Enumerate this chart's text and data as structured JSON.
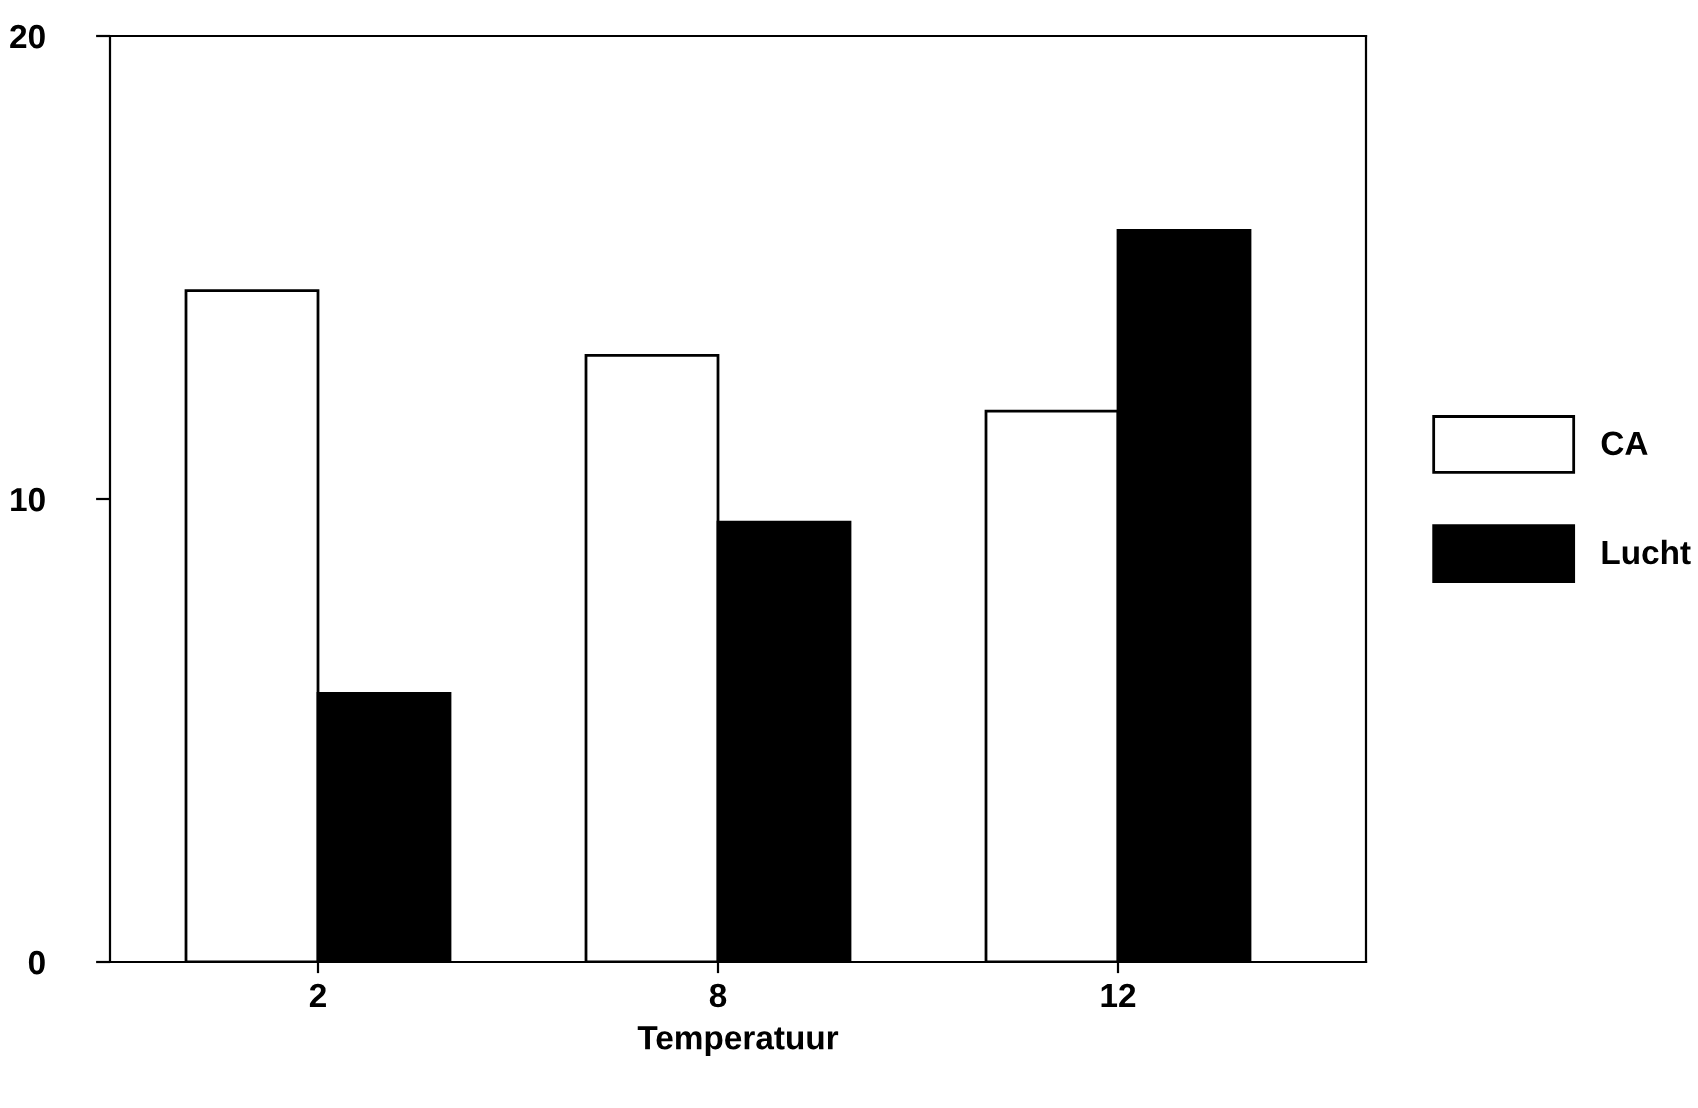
{
  "chart_data": {
    "type": "bar",
    "xlabel": "Temperatuur",
    "categories": [
      "2",
      "8",
      "12"
    ],
    "series": [
      {
        "name": "CA",
        "color": "#ffffff",
        "values": [
          14.5,
          13.1,
          11.9
        ]
      },
      {
        "name": "Lucht",
        "color": "#000000",
        "values": [
          5.8,
          9.5,
          15.8
        ]
      }
    ],
    "ylim": [
      0,
      20
    ],
    "yticks": [
      0,
      10,
      20
    ],
    "legend": "right",
    "grid": false
  }
}
